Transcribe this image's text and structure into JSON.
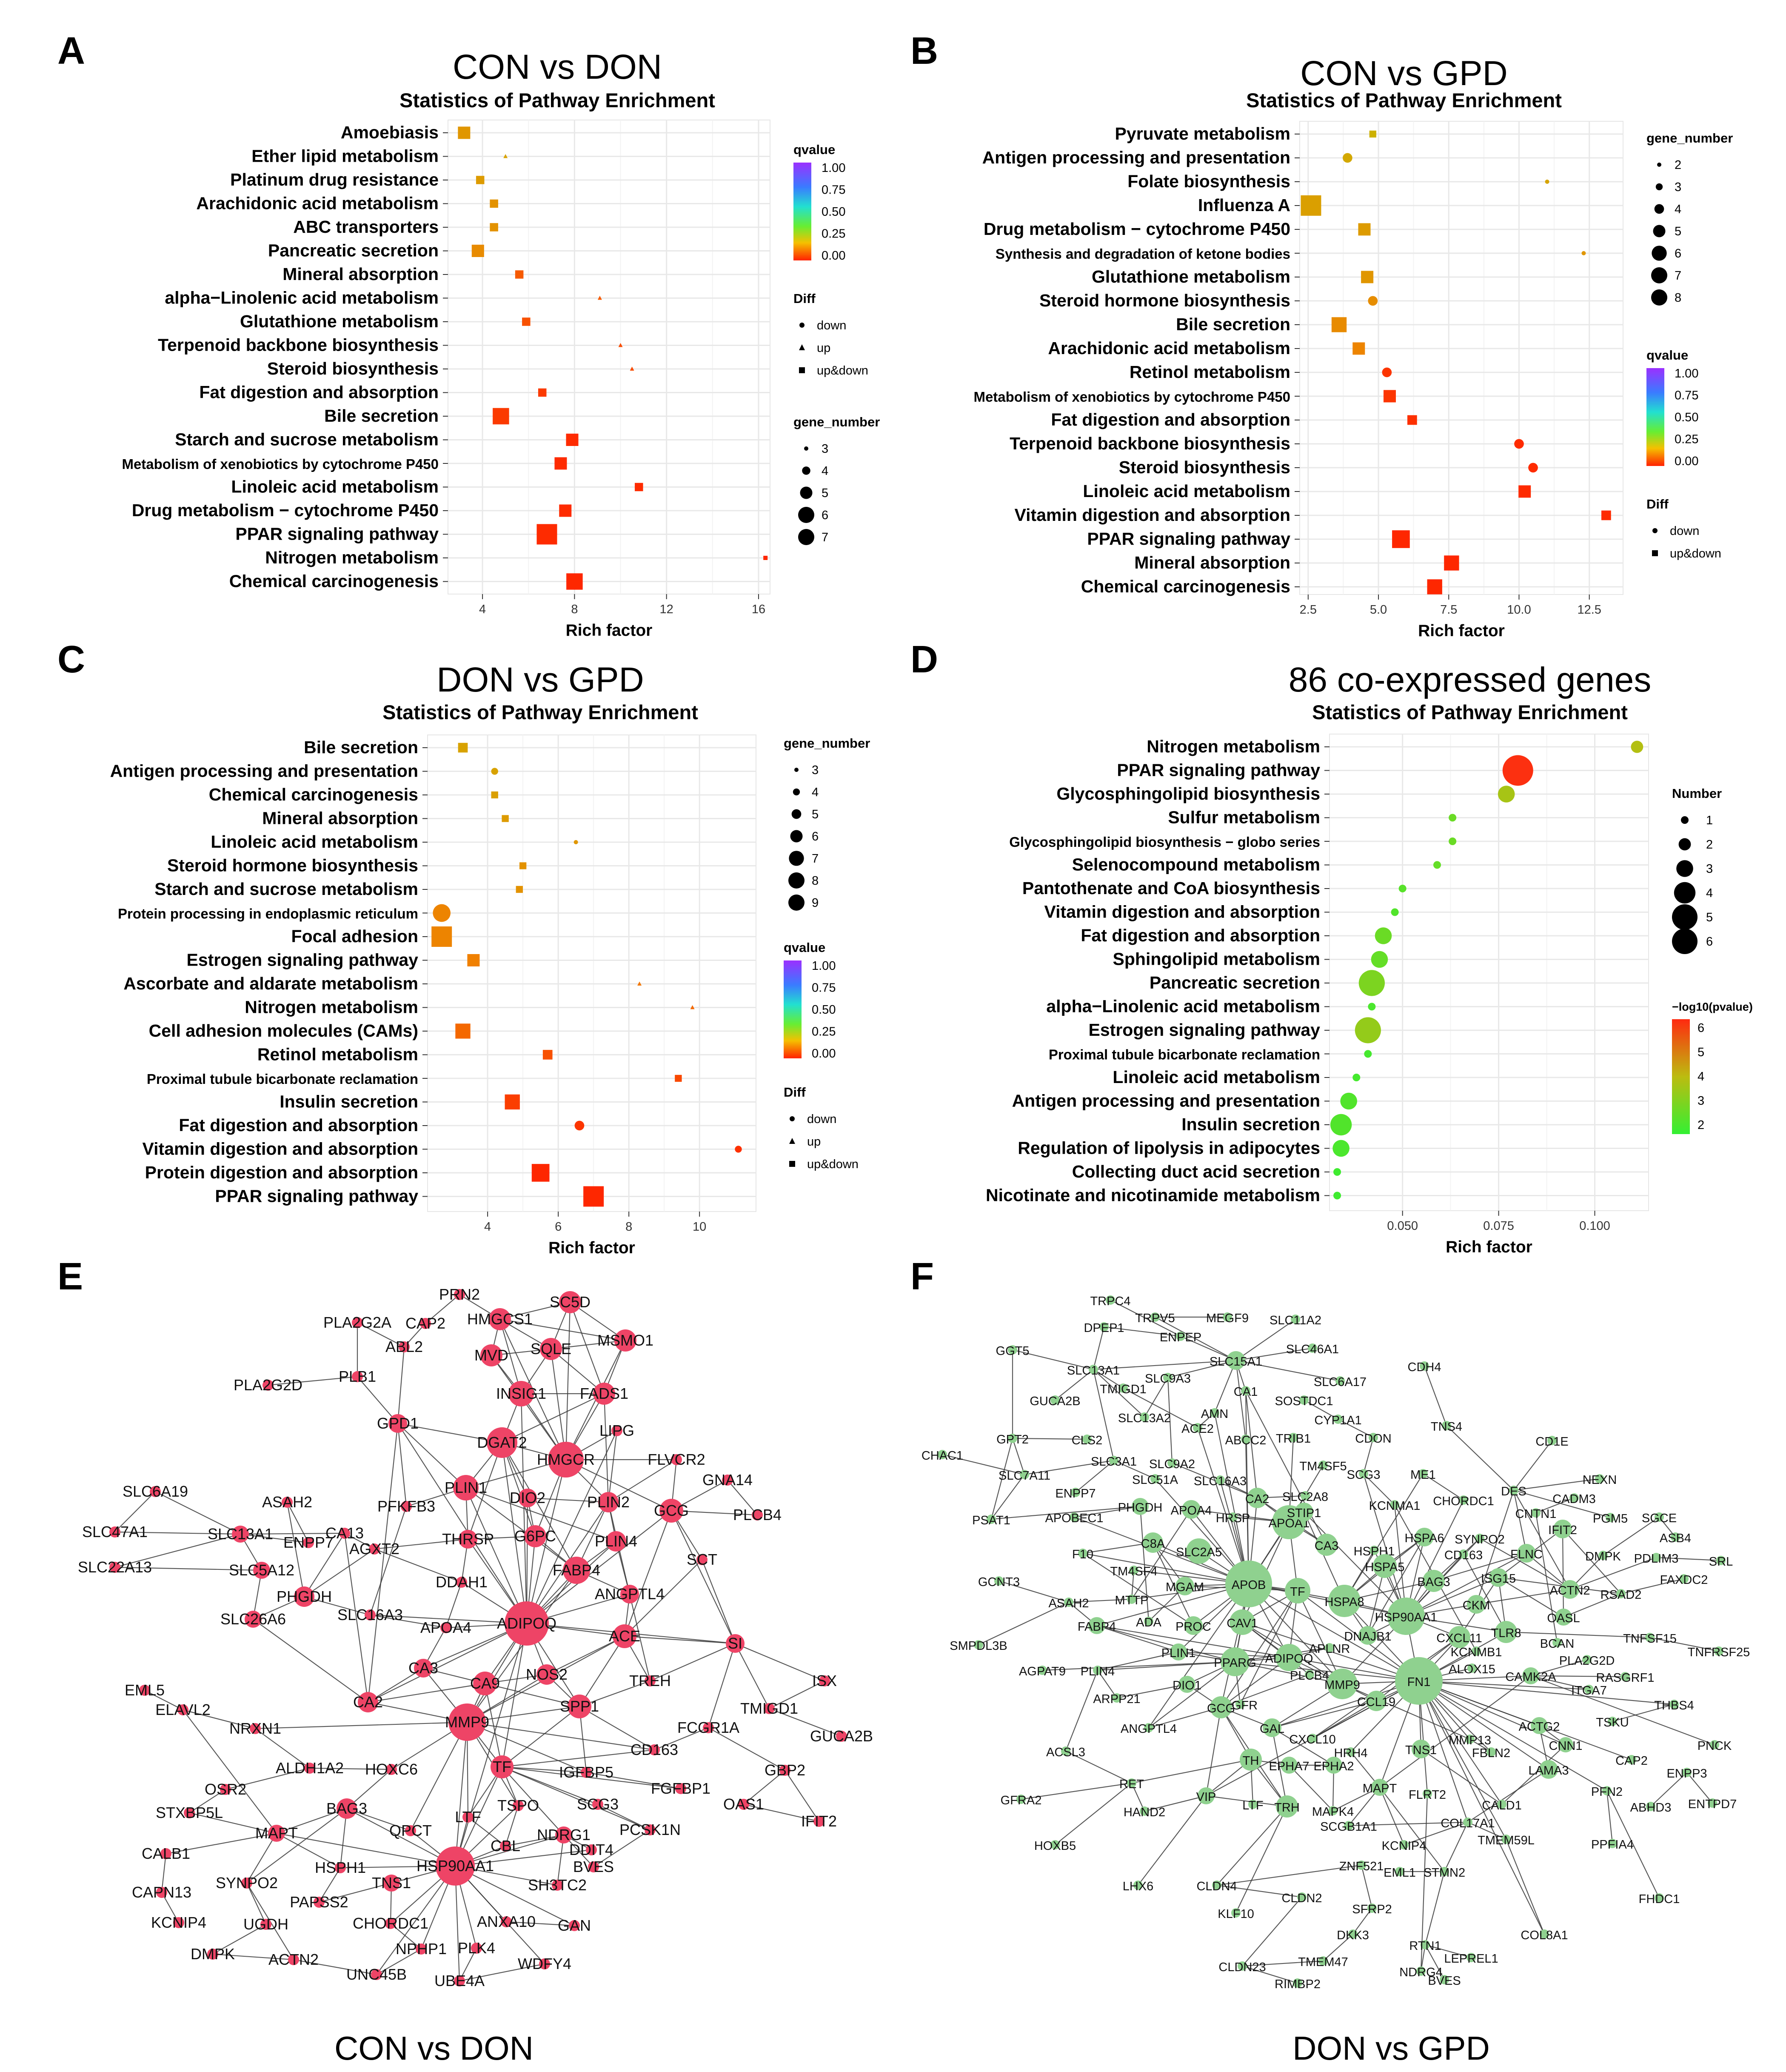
{
  "panel_labels": [
    "A",
    "B",
    "C",
    "D",
    "E",
    "F"
  ],
  "colors": {
    "network_e": "#ee4466",
    "network_f": "#8fd18f",
    "edge": "#3a3a3a",
    "grid": "#ebebeb"
  },
  "chart_data": [
    {
      "type": "scatter",
      "panel": "A",
      "title": "CON vs DON",
      "subtitle": "Statistics of Pathway Enrichment",
      "xlabel": "Rich factor",
      "xlim": [
        2.5,
        16.5
      ],
      "xticks": [
        4,
        8,
        12,
        16
      ],
      "pathways": [
        "Amoebiasis",
        "Ether lipid metabolism",
        "Platinum drug resistance",
        "Arachidonic acid metabolism",
        "ABC transporters",
        "Pancreatic secretion",
        "Mineral absorption",
        "alpha−Linolenic acid metabolism",
        "Glutathione metabolism",
        "Terpenoid backbone biosynthesis",
        "Steroid biosynthesis",
        "Fat digestion and absorption",
        "Bile secretion",
        "Starch and sucrose metabolism",
        "Metabolism of xenobiotics by cytochrome P450",
        "Linoleic acid metabolism",
        "Drug metabolism − cytochrome P450",
        "PPAR signaling pathway",
        "Nitrogen metabolism",
        "Chemical carcinogenesis"
      ],
      "rich_factor": [
        3.2,
        5.0,
        3.9,
        4.5,
        4.5,
        3.8,
        5.6,
        9.1,
        5.9,
        10.0,
        10.5,
        6.6,
        4.8,
        7.9,
        7.4,
        10.8,
        7.6,
        6.8,
        16.3,
        8.0
      ],
      "gene_number": [
        5,
        3,
        4,
        4,
        4,
        5,
        4,
        3,
        4,
        3,
        3,
        4,
        6,
        5,
        5,
        4,
        5,
        7,
        3,
        6
      ],
      "qvalue": [
        0.3,
        0.35,
        0.32,
        0.28,
        0.28,
        0.25,
        0.12,
        0.12,
        0.1,
        0.09,
        0.09,
        0.05,
        0.05,
        0.02,
        0.02,
        0.02,
        0.02,
        0.02,
        0.01,
        0.01
      ],
      "diff": [
        "up&down",
        "up",
        "up&down",
        "up&down",
        "up&down",
        "up&down",
        "up&down",
        "up",
        "up&down",
        "up",
        "up",
        "up&down",
        "up&down",
        "up&down",
        "up&down",
        "up&down",
        "up&down",
        "up&down",
        "up&down",
        "up&down"
      ],
      "legend": {
        "gene_title": "gene_number",
        "gene_values": [
          "3",
          "4",
          "5",
          "6",
          "7"
        ],
        "q_title": "qvalue",
        "q_ticks": [
          "1.00",
          "0.75",
          "0.50",
          "0.25",
          "0.00"
        ],
        "diff_title": "Diff",
        "diff_values": [
          "down",
          "up",
          "up&down"
        ]
      }
    },
    {
      "type": "scatter",
      "panel": "B",
      "title": "CON vs GPD",
      "subtitle": "Statistics of Pathway Enrichment",
      "xlabel": "Rich factor",
      "xlim": [
        2.2,
        13.7
      ],
      "xticks": [
        2.5,
        5.0,
        7.5,
        10.0,
        12.5
      ],
      "xticklabels": [
        "2.5",
        "5.0",
        "7.5",
        "10.0",
        "12.5"
      ],
      "pathways": [
        "Pyruvate metabolism",
        "Antigen processing and presentation",
        "Folate biosynthesis",
        "Influenza A",
        "Drug metabolism − cytochrome P450",
        "Synthesis and degradation of ketone bodies",
        "Glutathione metabolism",
        "Steroid hormone biosynthesis",
        "Bile secretion",
        "Arachidonic acid metabolism",
        "Retinol metabolism",
        "Metabolism of xenobiotics by cytochrome P450",
        "Fat digestion and absorption",
        "Terpenoid backbone biosynthesis",
        "Steroid biosynthesis",
        "Linoleic acid metabolism",
        "Vitamin digestion and absorption",
        "PPAR signaling pathway",
        "Mineral absorption",
        "Chemical carcinogenesis"
      ],
      "rich_factor": [
        4.8,
        3.9,
        11.0,
        2.6,
        4.5,
        12.3,
        4.6,
        4.8,
        3.6,
        4.3,
        5.3,
        5.4,
        6.2,
        10.0,
        10.5,
        10.2,
        13.1,
        5.8,
        7.6,
        7.0
      ],
      "gene_number": [
        3,
        4,
        2,
        8,
        5,
        2,
        5,
        4,
        6,
        5,
        4,
        5,
        4,
        4,
        4,
        5,
        4,
        7,
        6,
        6
      ],
      "qvalue": [
        0.42,
        0.38,
        0.36,
        0.34,
        0.32,
        0.3,
        0.3,
        0.26,
        0.25,
        0.22,
        0.04,
        0.04,
        0.03,
        0.02,
        0.02,
        0.02,
        0.02,
        0.01,
        0.01,
        0.01
      ],
      "diff": [
        "up&down",
        "down",
        "down",
        "up&down",
        "up&down",
        "down",
        "up&down",
        "down",
        "up&down",
        "up&down",
        "down",
        "up&down",
        "up&down",
        "down",
        "down",
        "up&down",
        "up&down",
        "up&down",
        "up&down",
        "up&down"
      ],
      "legend": {
        "gene_title": "gene_number",
        "gene_values": [
          "2",
          "3",
          "4",
          "5",
          "6",
          "7",
          "8"
        ],
        "q_title": "qvalue",
        "q_ticks": [
          "1.00",
          "0.75",
          "0.50",
          "0.25",
          "0.00"
        ],
        "diff_title": "Diff",
        "diff_values": [
          "down",
          "up&down"
        ]
      }
    },
    {
      "type": "scatter",
      "panel": "C",
      "title": "DON vs GPD",
      "subtitle": "Statistics of Pathway Enrichment",
      "xlabel": "Rich factor",
      "xlim": [
        2.3,
        11.6
      ],
      "xticks": [
        4,
        6,
        8,
        10
      ],
      "pathways": [
        "Bile secretion",
        "Antigen processing and presentation",
        "Chemical carcinogenesis",
        "Mineral absorption",
        "Linoleic acid metabolism",
        "Steroid hormone biosynthesis",
        "Starch and sucrose metabolism",
        "Protein processing in endoplasmic reticulum",
        "Focal adhesion",
        "Estrogen signaling pathway",
        "Ascorbate and aldarate metabolism",
        "Nitrogen metabolism",
        "Cell adhesion molecules (CAMs)",
        "Retinol metabolism",
        "Proximal tubule bicarbonate reclamation",
        "Insulin secretion",
        "Fat digestion and absorption",
        "Vitamin digestion and absorption",
        "Protein digestion and absorption",
        "PPAR signaling pathway"
      ],
      "rich_factor": [
        3.3,
        4.2,
        4.2,
        4.5,
        6.5,
        5.0,
        4.9,
        2.7,
        2.7,
        3.6,
        8.3,
        9.8,
        3.3,
        5.7,
        9.4,
        4.7,
        6.6,
        11.1,
        5.5,
        7.0
      ],
      "gene_number": [
        5,
        4,
        4,
        4,
        3,
        4,
        4,
        8,
        9,
        6,
        3,
        3,
        7,
        5,
        4,
        7,
        5,
        4,
        8,
        9
      ],
      "qvalue": [
        0.35,
        0.35,
        0.34,
        0.32,
        0.3,
        0.28,
        0.28,
        0.22,
        0.22,
        0.2,
        0.18,
        0.15,
        0.15,
        0.1,
        0.08,
        0.06,
        0.04,
        0.03,
        0.01,
        0.01
      ],
      "diff": [
        "up&down",
        "down",
        "up&down",
        "up&down",
        "down",
        "up&down",
        "up&down",
        "down",
        "up&down",
        "up&down",
        "up",
        "up",
        "up&down",
        "up&down",
        "up&down",
        "up&down",
        "down",
        "down",
        "up&down",
        "up&down"
      ],
      "legend": {
        "gene_title": "gene_number",
        "gene_values": [
          "3",
          "4",
          "5",
          "6",
          "7",
          "8",
          "9"
        ],
        "q_title": "qvalue",
        "q_ticks": [
          "1.00",
          "0.75",
          "0.50",
          "0.25",
          "0.00"
        ],
        "diff_title": "Diff",
        "diff_values": [
          "down",
          "up",
          "up&down"
        ]
      }
    },
    {
      "type": "scatter",
      "panel": "D",
      "title": "86 co-expressed genes",
      "subtitle": "Statistics of Pathway Enrichment",
      "xlabel": "Rich factor",
      "xlim": [
        0.031,
        0.114
      ],
      "xticks": [
        0.05,
        0.075,
        0.1
      ],
      "xticklabels": [
        "0.050",
        "0.075",
        "0.100"
      ],
      "pathways": [
        "Nitrogen metabolism",
        "PPAR signaling pathway",
        "Glycosphingolipid biosynthesis",
        "Sulfur metabolism",
        "Glycosphingolipid biosynthesis − globo series",
        "Selenocompound metabolism",
        "Pantothenate and CoA biosynthesis",
        "Vitamin digestion and absorption",
        "Fat digestion and absorption",
        "Sphingolipid metabolism",
        "Pancreatic secretion",
        "alpha−Linolenic acid metabolism",
        "Estrogen signaling pathway",
        "Proximal tubule bicarbonate reclamation",
        "Linoleic acid metabolism",
        "Antigen processing and presentation",
        "Insulin secretion",
        "Regulation of lipolysis in adipocytes",
        "Collecting duct acid secretion",
        "Nicotinate and nicotinamide metabolism"
      ],
      "rich_factor": [
        0.111,
        0.08,
        0.077,
        0.063,
        0.063,
        0.059,
        0.05,
        0.048,
        0.045,
        0.044,
        0.042,
        0.042,
        0.041,
        0.041,
        0.038,
        0.036,
        0.034,
        0.034,
        0.033,
        0.033
      ],
      "gene_number": [
        2,
        6,
        3,
        1,
        1,
        1,
        1,
        1,
        3,
        3,
        5,
        1,
        5,
        1,
        1,
        3,
        4,
        3,
        1,
        1
      ],
      "neg_log10_p": [
        3.6,
        5.9,
        3.4,
        2.4,
        2.4,
        2.3,
        2.1,
        2.0,
        2.4,
        2.3,
        2.7,
        1.9,
        3.1,
        1.8,
        1.8,
        2.0,
        2.0,
        1.9,
        1.7,
        1.7
      ],
      "legend": {
        "gene_title": "Number",
        "gene_values": [
          "1",
          "2",
          "3",
          "4",
          "5",
          "6"
        ],
        "p_title": "−log10(pvalue)",
        "p_ticks": [
          "6",
          "5",
          "4",
          "3",
          "2"
        ]
      }
    }
  ],
  "network_e": {
    "title": "CON vs DON",
    "nodes": [
      "PRN2",
      "SC5D",
      "HMGCS1",
      "PLA2G2A",
      "CAP2",
      "ABL2",
      "MVD",
      "SQLE",
      "MSMO1",
      "PLB1",
      "PLA2G2D",
      "INSIG1",
      "FADS1",
      "GPD1",
      "DGAT2",
      "LIPG",
      "HMGCR",
      "FLVCR2",
      "GNA14",
      "PLIN1",
      "DIO2",
      "PLIN2",
      "GCG",
      "PLCB4",
      "SLC6A19",
      "ASAH2",
      "PFKFB3",
      "SLC47A1",
      "SLC13A1",
      "CA13",
      "ENPP7",
      "AGXT2",
      "THRSP",
      "G6PC",
      "PLIN4",
      "SLC22A13",
      "SLC5A12",
      "SCT",
      "FABP4",
      "DDAH1",
      "PHGDH",
      "ANGPTL4",
      "SLC26A6",
      "SLC16A3",
      "APOA4",
      "ADIPOQ",
      "ACE",
      "SI",
      "CA3",
      "NOS2",
      "TREH",
      "ISX",
      "EML5",
      "CA2",
      "CA9",
      "ELAVL2",
      "SPP1",
      "TMIGD1",
      "MMP9",
      "FCGR1A",
      "NRXN1",
      "GUCA2B",
      "CD163",
      "ALDH1A2",
      "HOXC6",
      "TF",
      "IGFBP5",
      "GBP2",
      "OSR2",
      "FGFBP1",
      "OAS1",
      "STXBP5L",
      "BAG3",
      "QPCT",
      "SCG3",
      "LTF",
      "TSPO",
      "PCSK1N",
      "IFIT2",
      "MAPT",
      "NDRG1",
      "CBL",
      "DDIT4",
      "CALB1",
      "HSPH1",
      "HSP90AA1",
      "BVES",
      "SYNPO2",
      "TNS1",
      "SH3TC2",
      "CAPN13",
      "PAPSS2",
      "ANXA10",
      "KCNIP4",
      "UGDH",
      "CHORDC1",
      "GAN",
      "NPHP1",
      "DMPK",
      "PLK4",
      "ACTN2",
      "UNC45B",
      "UBE4A",
      "WDFY4"
    ]
  },
  "network_f": {
    "title": "DON vs GPD",
    "nodes": [
      "TRPC4",
      "TRPV5",
      "MEGF9",
      "SLC11A2",
      "DPEP1",
      "ENPEP",
      "GGT5",
      "SLC46A1",
      "SLC15A1",
      "SLC13A1",
      "SLC6A17",
      "CDH4",
      "SLC9A3",
      "TMIGD1",
      "CA1",
      "GUCA2B",
      "SOSTDC1",
      "SLC13A2",
      "AMN",
      "ACE2",
      "GPT2",
      "CLS2",
      "ABCC2",
      "CYP1A1",
      "TNS4",
      "CD1E",
      "CHAC1",
      "TRIB1",
      "CDON",
      "SLC3A1",
      "SLC9A2",
      "SLC7A11",
      "ME1",
      "NEXN",
      "ENPP7",
      "SLC51A",
      "SLC16A3",
      "TM4SF5",
      "DES",
      "PSAT1",
      "APOBEC1",
      "PHGDH",
      "CA2",
      "SCG3",
      "KCNMA1",
      "CHORDC1",
      "CADM3",
      "APOA4",
      "HRSP",
      "SLC2A8",
      "APOA1",
      "CNTN1",
      "IFIT2",
      "PGM5",
      "SGCE",
      "F10",
      "CA3",
      "C8A",
      "SLC2A5",
      "HSPA6",
      "SYNPO2",
      "ASB4",
      "GCNT3",
      "HSPH1",
      "CD163",
      "FLNC",
      "DMPK",
      "TM4SF4",
      "HSPA5",
      "PDLIM3",
      "SRL",
      "STIP1",
      "BAG3",
      "ISG15",
      "MTTP",
      "MGAM",
      "APOB",
      "TF",
      "HSPA8",
      "ACTN2",
      "RSAD2",
      "FAXDC2",
      "ASAH2",
      "ADA",
      "CKM",
      "OASL",
      "HSP90AA1",
      "FABP4",
      "PROC",
      "CAV1",
      "TLR8",
      "SMPDL3B",
      "DNAJB1",
      "CXCL11",
      "KCNMB1",
      "TNFSF15",
      "TNFRSF25",
      "PLIN1",
      "APLNR",
      "BCAN",
      "PPARG",
      "ADIPOQ",
      "AGPAT9",
      "DIO1",
      "RASGRF1",
      "CAMK2A",
      "PLIN4",
      "MMP9",
      "FN1",
      "PLA2G2D",
      "ARPP21",
      "CCL19",
      "ALOX15",
      "ITGA7",
      "NGFR",
      "GCG",
      "PLCB4",
      "THBS4",
      "ANGPTL4",
      "GAL",
      "CXCL10",
      "MMP13",
      "TSKU",
      "ACTG2",
      "FBLN2",
      "ACSL3",
      "HRH4",
      "TNS1",
      "CNN1",
      "CAP2",
      "PNCK",
      "TH",
      "EPHA7",
      "EPHA2",
      "MAPT",
      "RET",
      "LAMA3",
      "ENPP3",
      "FLRT2",
      "CALD1",
      "ABHD3",
      "GFRA2",
      "VIP",
      "LTF",
      "TRH",
      "MAPK4",
      "HAND2",
      "PFN2",
      "ENTPD7",
      "COL17A1",
      "SCGB1A1",
      "KCNIP4",
      "TMEM59L",
      "HOXB5",
      "PPFIA4",
      "ZNF521",
      "EML1",
      "STMN2",
      "LHX6",
      "CLDN4",
      "CLDN2",
      "FHDC1",
      "KLF10",
      "SFRP2",
      "DKK3",
      "COL8A1",
      "RTN1",
      "TMEM47",
      "LEPREL1",
      "CLDN23",
      "NDRG4",
      "BVES",
      "RIMBP2"
    ]
  }
}
